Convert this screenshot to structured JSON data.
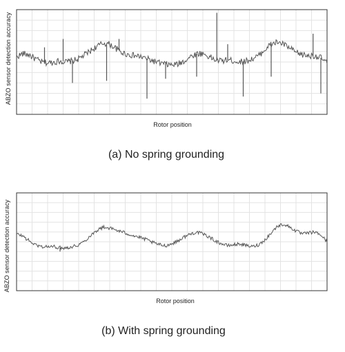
{
  "chart_data": [
    {
      "type": "line",
      "caption": "(a) No spring grounding",
      "xlabel": "Rotor position",
      "ylabel": "ABZO sensor detection accuracy",
      "grid": true,
      "x_tick_labels": "none",
      "y_tick_labels": "none",
      "note": "Unscaled axes; y values expressed as relative level 0 (bottom) to 1 (top) of plot area; x as 0-1 rotor position fraction",
      "ylim": [
        0,
        1
      ],
      "xlim": [
        0,
        1
      ],
      "series": [
        {
          "color": "#555555",
          "x": [
            0.0,
            0.02,
            0.04,
            0.06,
            0.08,
            0.1,
            0.12,
            0.14,
            0.16,
            0.18,
            0.2,
            0.22,
            0.24,
            0.26,
            0.28,
            0.3,
            0.32,
            0.34,
            0.36,
            0.38,
            0.4,
            0.42,
            0.44,
            0.46,
            0.48,
            0.5,
            0.52,
            0.54,
            0.56,
            0.58,
            0.6,
            0.62,
            0.64,
            0.66,
            0.68,
            0.7,
            0.72,
            0.74,
            0.76,
            0.78,
            0.8,
            0.82,
            0.84,
            0.86,
            0.88,
            0.9,
            0.92,
            0.94,
            0.96,
            0.98,
            1.0
          ],
          "y": [
            0.55,
            0.58,
            0.57,
            0.53,
            0.5,
            0.49,
            0.5,
            0.51,
            0.5,
            0.51,
            0.53,
            0.57,
            0.61,
            0.65,
            0.68,
            0.67,
            0.63,
            0.59,
            0.57,
            0.56,
            0.55,
            0.53,
            0.51,
            0.49,
            0.48,
            0.47,
            0.48,
            0.51,
            0.55,
            0.58,
            0.58,
            0.55,
            0.52,
            0.51,
            0.52,
            0.51,
            0.5,
            0.51,
            0.53,
            0.56,
            0.62,
            0.67,
            0.69,
            0.67,
            0.63,
            0.59,
            0.57,
            0.56,
            0.56,
            0.54,
            0.49
          ]
        }
      ],
      "spikes": [
        {
          "x": 0.0,
          "y": 0.2
        },
        {
          "x": 0.09,
          "y": 0.64
        },
        {
          "x": 0.15,
          "y": 0.72
        },
        {
          "x": 0.18,
          "y": 0.3
        },
        {
          "x": 0.29,
          "y": 0.32
        },
        {
          "x": 0.33,
          "y": 0.72
        },
        {
          "x": 0.42,
          "y": 0.15
        },
        {
          "x": 0.48,
          "y": 0.34
        },
        {
          "x": 0.58,
          "y": 0.36
        },
        {
          "x": 0.645,
          "y": 0.97
        },
        {
          "x": 0.68,
          "y": 0.67
        },
        {
          "x": 0.73,
          "y": 0.17
        },
        {
          "x": 0.82,
          "y": 0.36
        },
        {
          "x": 0.955,
          "y": 0.77
        },
        {
          "x": 0.98,
          "y": 0.2
        }
      ]
    },
    {
      "type": "line",
      "caption": "(b) With spring grounding",
      "xlabel": "Rotor position",
      "ylabel": "ABZO sensor detection accuracy",
      "grid": true,
      "x_tick_labels": "none",
      "y_tick_labels": "none",
      "note": "Unscaled axes; y values expressed as relative level 0 (bottom) to 1 (top) of plot area; x as 0-1 rotor position fraction",
      "ylim": [
        0,
        1
      ],
      "xlim": [
        0,
        1
      ],
      "series": [
        {
          "color": "#555555",
          "x": [
            0.0,
            0.02,
            0.04,
            0.06,
            0.08,
            0.1,
            0.12,
            0.14,
            0.16,
            0.18,
            0.2,
            0.22,
            0.24,
            0.26,
            0.28,
            0.3,
            0.32,
            0.34,
            0.36,
            0.38,
            0.4,
            0.42,
            0.44,
            0.46,
            0.48,
            0.5,
            0.52,
            0.54,
            0.56,
            0.58,
            0.6,
            0.62,
            0.64,
            0.66,
            0.68,
            0.7,
            0.72,
            0.74,
            0.76,
            0.78,
            0.8,
            0.82,
            0.84,
            0.86,
            0.88,
            0.9,
            0.92,
            0.94,
            0.96,
            0.98,
            1.0
          ],
          "y": [
            0.58,
            0.56,
            0.51,
            0.47,
            0.45,
            0.45,
            0.45,
            0.44,
            0.44,
            0.45,
            0.47,
            0.51,
            0.57,
            0.62,
            0.65,
            0.64,
            0.62,
            0.6,
            0.58,
            0.56,
            0.54,
            0.52,
            0.49,
            0.47,
            0.46,
            0.48,
            0.51,
            0.55,
            0.58,
            0.6,
            0.58,
            0.55,
            0.51,
            0.48,
            0.46,
            0.47,
            0.48,
            0.46,
            0.45,
            0.47,
            0.52,
            0.59,
            0.66,
            0.68,
            0.65,
            0.61,
            0.58,
            0.59,
            0.6,
            0.57,
            0.5
          ]
        }
      ],
      "spikes": [
        {
          "x": 0.0,
          "y": 0.33
        },
        {
          "x": 0.14,
          "y": 0.4
        },
        {
          "x": 0.38,
          "y": 0.55
        }
      ]
    }
  ]
}
